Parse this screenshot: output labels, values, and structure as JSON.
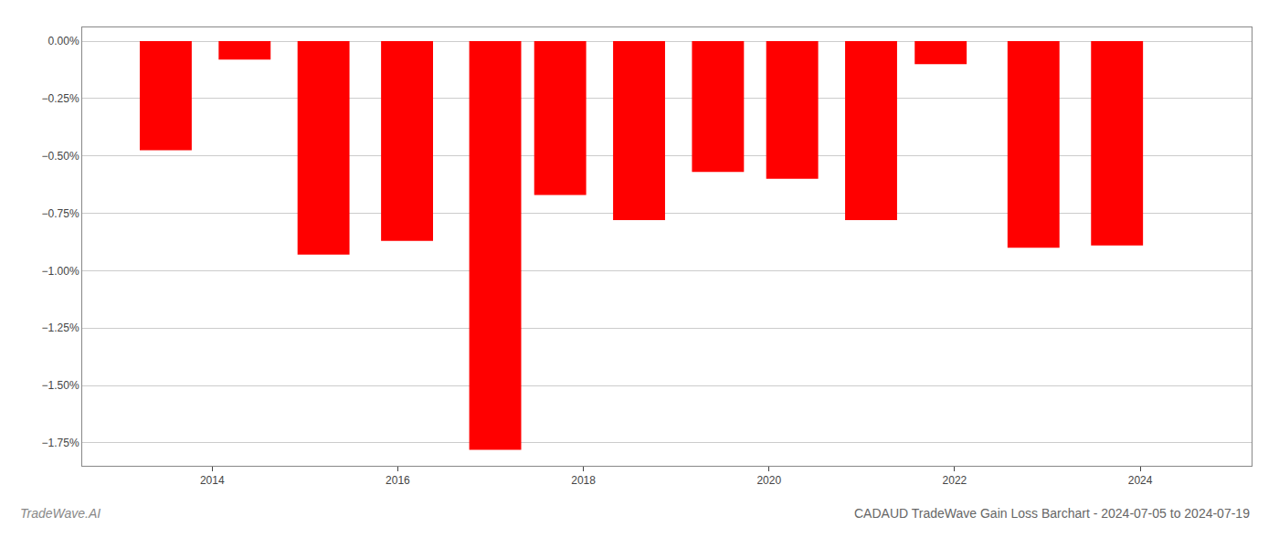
{
  "chart_data": {
    "type": "bar",
    "title": "CADAUD TradeWave Gain Loss Barchart - 2024-07-05 to 2024-07-19",
    "annotations": [
      "TradeWave.AI"
    ],
    "x": [
      2013.5,
      2014.35,
      2015.2,
      2016.1,
      2017.05,
      2017.75,
      2018.6,
      2019.45,
      2020.25,
      2021.1,
      2021.85,
      2022.85,
      2023.75
    ],
    "values": [
      -0.475,
      -0.08,
      -0.93,
      -0.87,
      -1.78,
      -0.67,
      -0.78,
      -0.57,
      -0.6,
      -0.78,
      -0.1,
      -0.9,
      -0.89
    ],
    "color": "#ff0000",
    "xlim": [
      2012.6,
      2025.2
    ],
    "xticks": [
      2014,
      2016,
      2018,
      2020,
      2022,
      2024
    ],
    "ylim": [
      -1.85,
      0.06
    ],
    "yticks": [
      {
        "value": 0.0,
        "label": "0.00%"
      },
      {
        "value": -0.25,
        "label": "−0.25%"
      },
      {
        "value": -0.5,
        "label": "−0.50%"
      },
      {
        "value": -0.75,
        "label": "−0.75%"
      },
      {
        "value": -1.0,
        "label": "−1.00%"
      },
      {
        "value": -1.25,
        "label": "−1.25%"
      },
      {
        "value": -1.5,
        "label": "−1.50%"
      },
      {
        "value": -1.75,
        "label": "−1.75%"
      }
    ],
    "grid": true
  }
}
